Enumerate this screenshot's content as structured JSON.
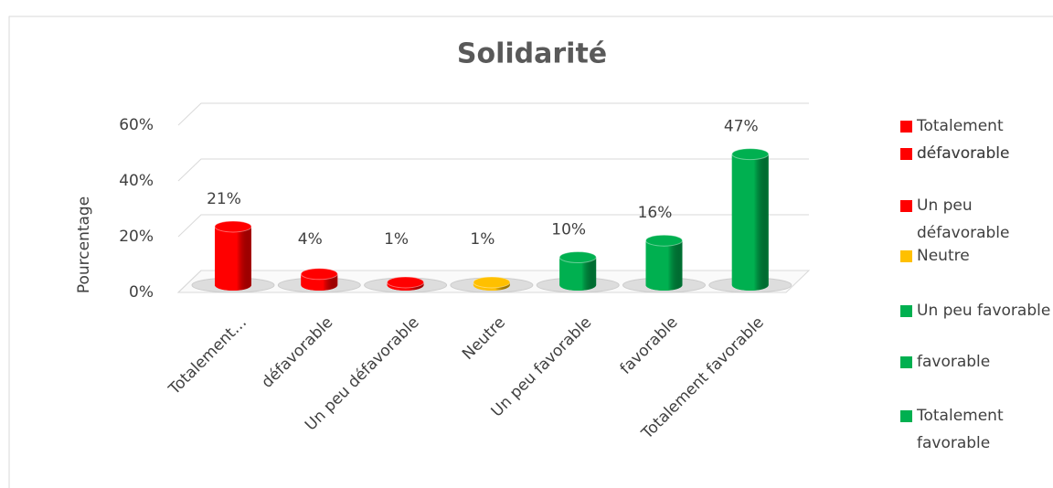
{
  "chart_data": {
    "type": "bar3d",
    "title": "Solidarité",
    "y_label": "Pourcentage",
    "categories": [
      "Totalement…",
      "défavorable",
      "Un peu défavorable",
      "Neutre",
      "Un peu favorable",
      "favorable",
      "Totalement favorable"
    ],
    "legend": [
      "Totalement défavorable",
      "défavorable",
      "Un peu défavorable",
      "Neutre",
      "Un peu favorable",
      "favorable",
      "Totalement favorable"
    ],
    "values": [
      21,
      4,
      1,
      1,
      10,
      16,
      47
    ],
    "value_labels": [
      "21%",
      "4%",
      "1%",
      "1%",
      "10%",
      "16%",
      "47%"
    ],
    "colors": [
      "#ff0000",
      "#ff0000",
      "#ff0000",
      "#ffc000",
      "#00b050",
      "#00b050",
      "#00b050"
    ],
    "ylim": [
      0,
      60
    ],
    "yticks": [
      {
        "value": 0,
        "label": "0%"
      },
      {
        "value": 20,
        "label": "20%"
      },
      {
        "value": 40,
        "label": "40%"
      },
      {
        "value": 60,
        "label": "60%"
      }
    ],
    "grid": true
  }
}
